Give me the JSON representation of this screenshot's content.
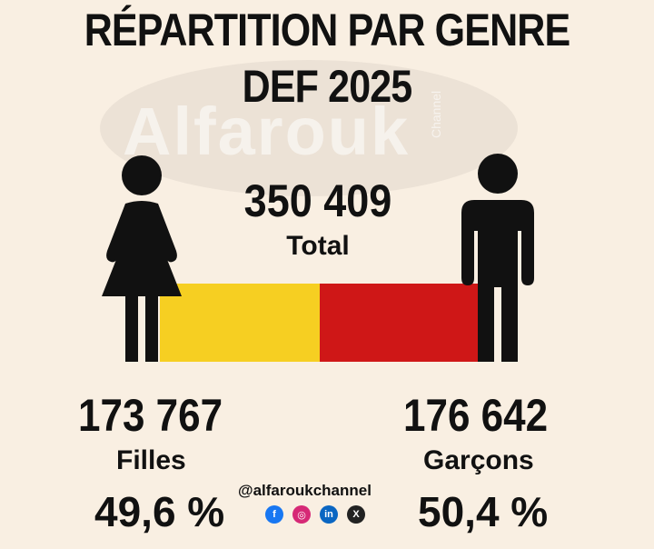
{
  "title_line1": "RÉPARTITION PAR GENRE",
  "title_line2": "DEF 2025",
  "watermark": {
    "text": "Alfarouk",
    "sub": "Channel"
  },
  "total": {
    "value": "350 409",
    "label": "Total"
  },
  "girls": {
    "count": "173 767",
    "label": "Filles",
    "percent": "49,6 %",
    "color": "#f6cf22"
  },
  "boys": {
    "count": "176 642",
    "label": "Garçons",
    "percent": "50,4 %",
    "color": "#cf1717"
  },
  "footer": {
    "handle": "@alfaroukchannel",
    "socials": [
      {
        "icon": "facebook-icon",
        "glyph": "f",
        "color": "#1877f2"
      },
      {
        "icon": "instagram-icon",
        "glyph": "◎",
        "color": "#d62976"
      },
      {
        "icon": "linkedin-icon",
        "glyph": "in",
        "color": "#0a66c2"
      },
      {
        "icon": "x-icon",
        "glyph": "X",
        "color": "#222222"
      }
    ]
  },
  "chart_data": {
    "type": "bar",
    "orientation": "horizontal-stacked",
    "categories": [
      "Filles",
      "Garçons"
    ],
    "values": [
      173767,
      176642
    ],
    "percent": [
      49.6,
      50.4
    ],
    "total": 350409,
    "title": "RÉPARTITION PAR GENRE DEF 2025",
    "colors": [
      "#f6cf22",
      "#cf1717"
    ]
  }
}
